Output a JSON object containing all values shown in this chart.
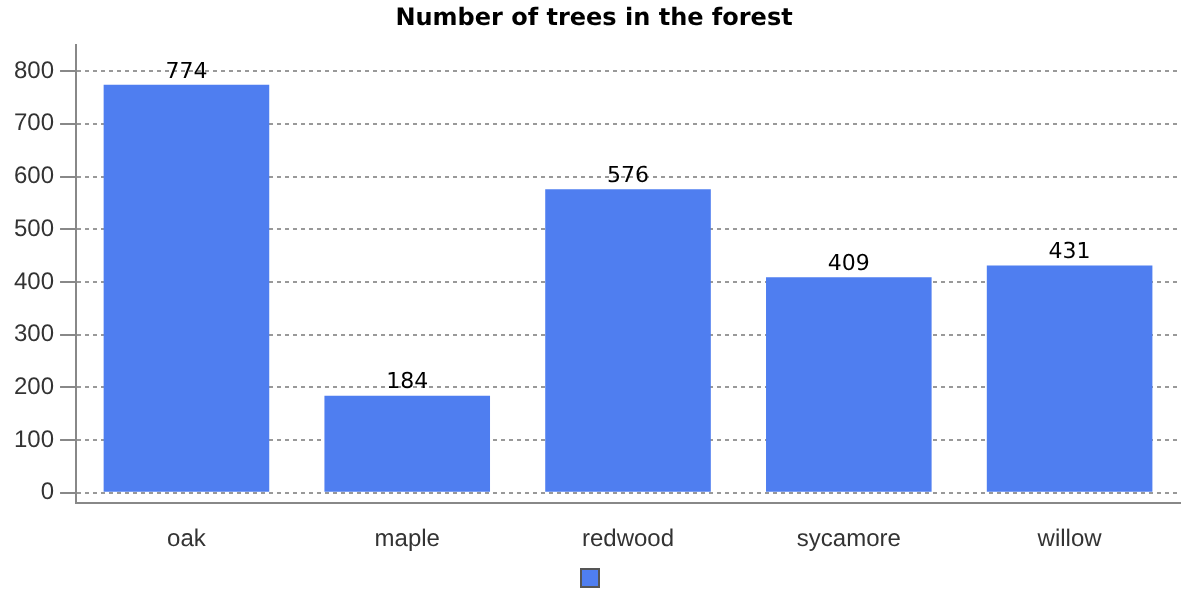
{
  "chart_data": {
    "type": "bar",
    "title": "Number of trees in the forest",
    "categories": [
      "oak",
      "maple",
      "redwood",
      "sycamore",
      "willow"
    ],
    "series": [
      {
        "color": "#4f7ef0",
        "values": [
          774,
          184,
          576,
          409,
          431
        ]
      }
    ],
    "ylim": [
      -20,
      850
    ],
    "yticks": [
      0,
      100,
      200,
      300,
      400,
      500,
      600,
      700,
      800
    ],
    "grid": "y",
    "data_labels": true
  }
}
